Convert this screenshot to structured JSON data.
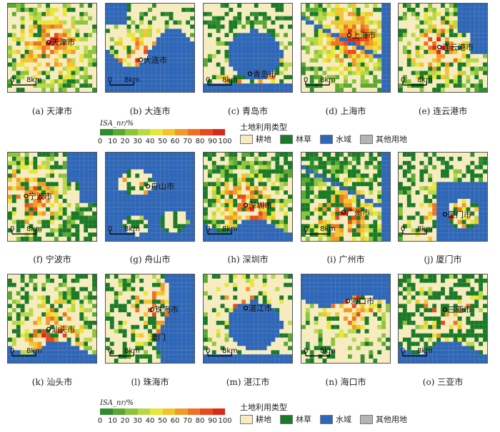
{
  "panels": [
    {
      "caption": "(a) 天津市",
      "city": "天津市",
      "scale": "8km"
    },
    {
      "caption": "(b) 大连市",
      "city": "大连市",
      "scale": "8km"
    },
    {
      "caption": "(c) 青岛市",
      "city": "青岛市",
      "scale": "8km"
    },
    {
      "caption": "(d) 上海市",
      "city": "上海市",
      "scale": "8km"
    },
    {
      "caption": "(e) 连云港市",
      "city": "连云港市",
      "scale": "8km"
    },
    {
      "caption": "(f) 宁波市",
      "city": "宁波市",
      "scale": "8km"
    },
    {
      "caption": "(g) 舟山市",
      "city": "舟山市",
      "scale": "8km"
    },
    {
      "caption": "(h) 深圳市",
      "city": "深圳市",
      "scale": "8km"
    },
    {
      "caption": "(i) 广州市",
      "city": "广州市",
      "scale": "8km"
    },
    {
      "caption": "(j) 厦门市",
      "city": "厦门市",
      "scale": "8km"
    },
    {
      "caption": "(k) 汕头市",
      "city": "汕头市",
      "scale": "8km"
    },
    {
      "caption": "(l) 珠海市",
      "city": "珠海市",
      "city2": "澳门",
      "scale": "8km"
    },
    {
      "caption": "(m) 湛江市",
      "city": "湛江市",
      "scale": "8km"
    },
    {
      "caption": "(n) 海口市",
      "city": "海口市",
      "scale": "8km"
    },
    {
      "caption": "(o) 三亚市",
      "city": "三亚市",
      "scale": "8km"
    }
  ],
  "legend_isa": {
    "title": "ISA_nr/%",
    "ticks": [
      "0",
      "10",
      "20",
      "30",
      "40",
      "50",
      "60",
      "70",
      "80",
      "90",
      "100"
    ],
    "colors": [
      "#2e8b2e",
      "#5aa832",
      "#8cc43c",
      "#b8d84a",
      "#e8e63a",
      "#f4c430",
      "#f29a28",
      "#ee7222",
      "#e84a1e",
      "#d92a18"
    ]
  },
  "legend_landuse": {
    "title": "土地利用类型",
    "items": [
      {
        "label": "耕地",
        "color": "#f6ecc0"
      },
      {
        "label": "林草",
        "color": "#1a7a2a"
      },
      {
        "label": "水域",
        "color": "#2f67b8"
      },
      {
        "label": "其他用地",
        "color": "#b4b4b4"
      }
    ]
  }
}
